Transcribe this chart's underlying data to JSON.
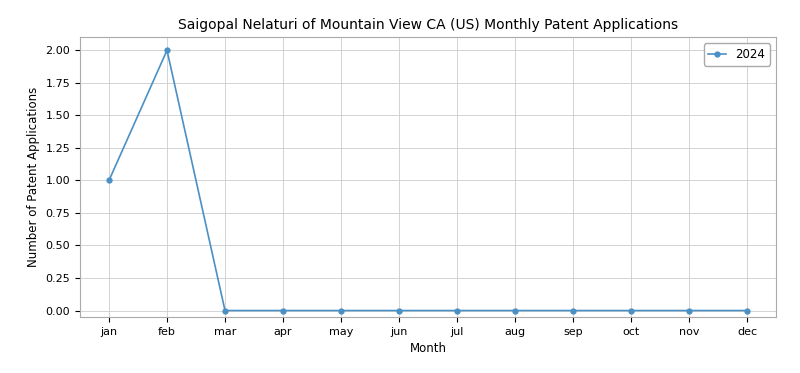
{
  "title": "Saigopal Nelaturi of Mountain View CA (US) Monthly Patent Applications",
  "xlabel": "Month",
  "ylabel": "Number of Patent Applications",
  "months": [
    "jan",
    "feb",
    "mar",
    "apr",
    "may",
    "jun",
    "jul",
    "aug",
    "sep",
    "oct",
    "nov",
    "dec"
  ],
  "values": [
    1,
    2,
    0,
    0,
    0,
    0,
    0,
    0,
    0,
    0,
    0,
    0
  ],
  "line_color": "#4a90c4",
  "marker": "o",
  "marker_size": 3.5,
  "legend_label": "2024",
  "ylim": [
    -0.05,
    2.1
  ],
  "yticks": [
    0.0,
    0.25,
    0.5,
    0.75,
    1.0,
    1.25,
    1.5,
    1.75,
    2.0
  ],
  "title_fontsize": 10,
  "axis_label_fontsize": 8.5,
  "tick_fontsize": 8,
  "legend_fontsize": 8.5,
  "grid": true,
  "background_color": "#ffffff",
  "grid_color": "#cccccc"
}
